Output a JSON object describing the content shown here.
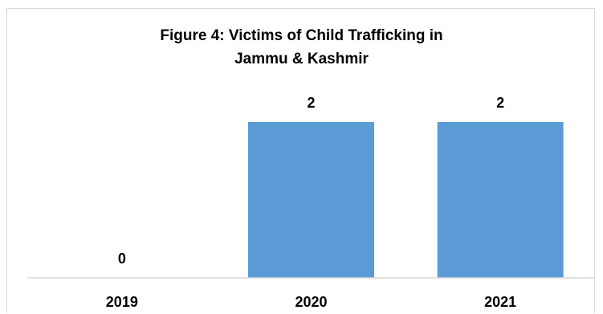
{
  "chart_data": {
    "type": "bar",
    "title": "Figure 4: Victims of Child Trafficking in Jammu & Kashmir",
    "categories": [
      "2019",
      "2020",
      "2021"
    ],
    "values": [
      0,
      2,
      2
    ],
    "data_labels": [
      "0",
      "2",
      "2"
    ],
    "xlabel": "",
    "ylabel": "",
    "ylim": [
      0,
      2
    ],
    "grid": false,
    "legend": "none",
    "colors": {
      "bar": "#5b9bd5",
      "axis": "#d9d9d9"
    }
  }
}
